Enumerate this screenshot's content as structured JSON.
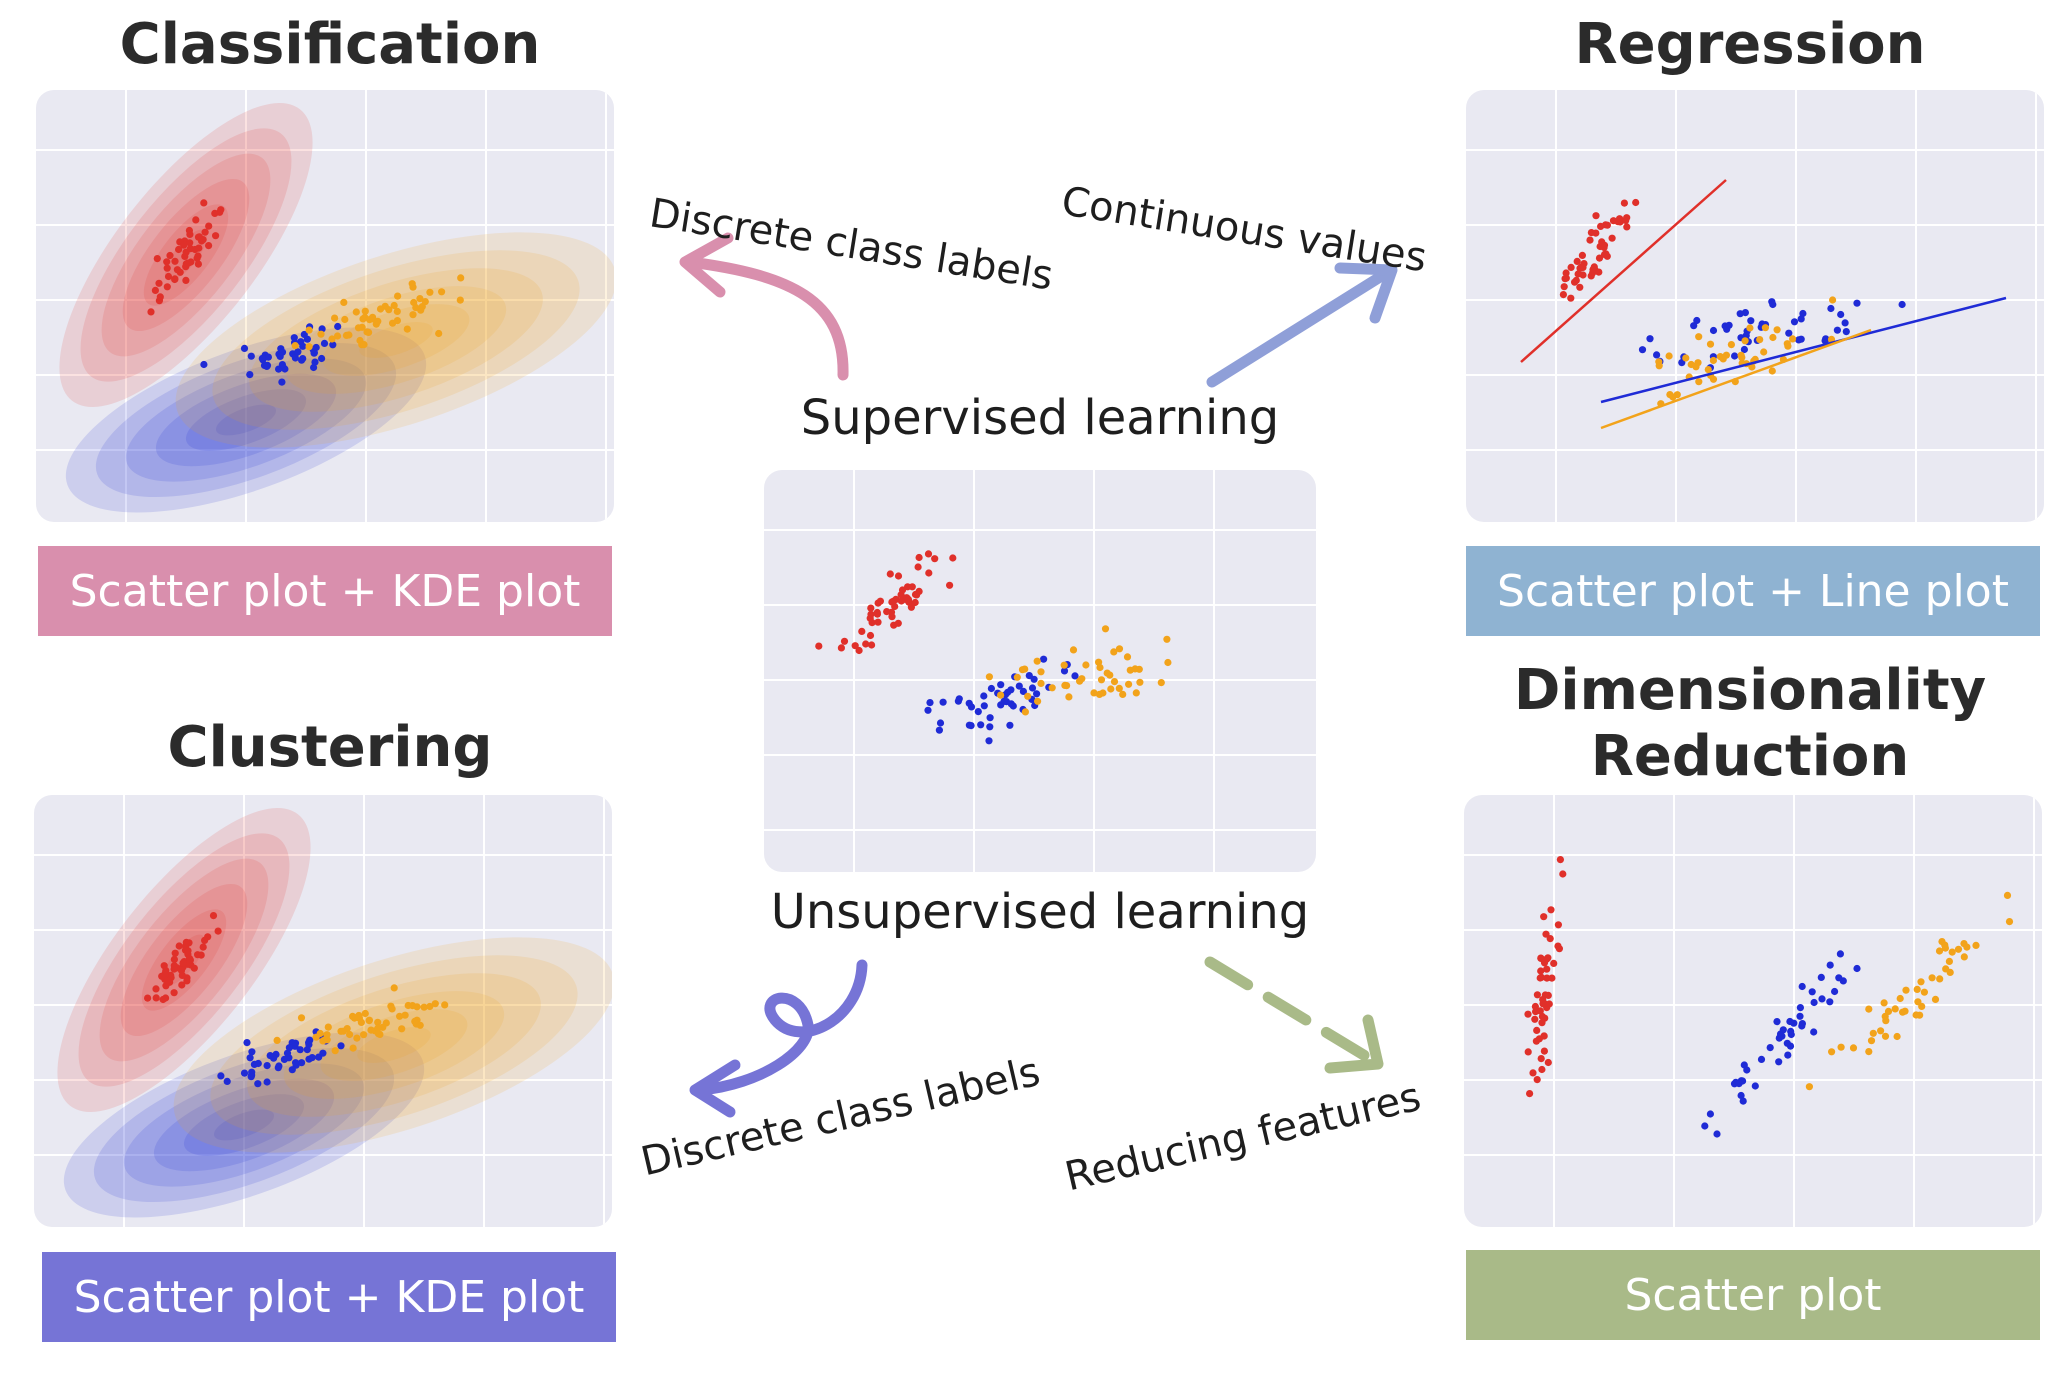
{
  "titles": {
    "classification": "Classification",
    "regression": "Regression",
    "clustering": "Clustering",
    "dimensionality_line1": "Dimensionality",
    "dimensionality_line2": "Reduction"
  },
  "captions": {
    "classification": "Scatter plot + KDE plot",
    "regression": "Scatter plot + Line plot",
    "clustering": "Scatter plot + KDE plot",
    "dimensionality": "Scatter plot"
  },
  "center": {
    "supervised": "Supervised learning",
    "unsupervised": "Unsupervised learning"
  },
  "arrow_labels": {
    "classification": "Discrete class labels",
    "regression": "Continuous values",
    "clustering": "Discrete class labels",
    "dimensionality": "Reducing features"
  },
  "colors": {
    "red": "#e0302a",
    "blue": "#1f2bd6",
    "orange": "#f2a31b",
    "panel_bg": "#e9e9f2",
    "caption_classification": "#d98fad",
    "caption_regression": "#8fb3d2",
    "caption_clustering": "#7674d6",
    "caption_dimensionality": "#a9ba88",
    "arrow_classification": "#d98fad",
    "arrow_regression": "#8f9fd8",
    "arrow_clustering": "#7674d6",
    "arrow_dimensionality": "#a9ba88"
  }
}
